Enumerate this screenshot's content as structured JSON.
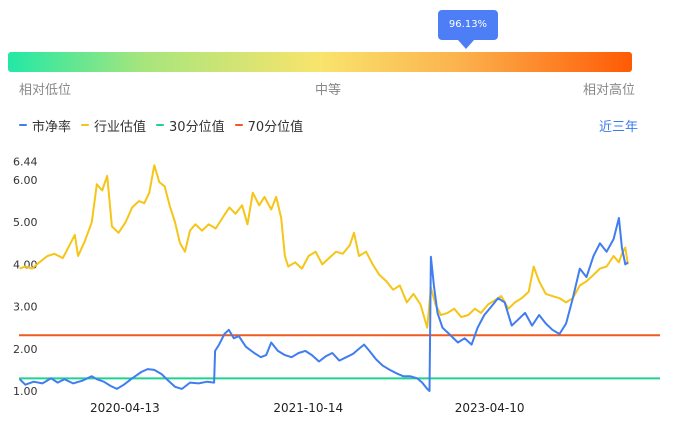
{
  "percentile_bubble": "96.13%",
  "scale": {
    "low": "相对低位",
    "mid": "中等",
    "high": "相对高位"
  },
  "legend": [
    {
      "label": "市净率",
      "color": "#3f7df0"
    },
    {
      "label": "行业估值",
      "color": "#f5c518"
    },
    {
      "label": "30分位值",
      "color": "#1fd38e"
    },
    {
      "label": "70分位值",
      "color": "#f05a1e"
    }
  ],
  "period_link": "近三年",
  "chart_data": {
    "type": "line",
    "y_ticks": [
      "1.00",
      "2.00",
      "3.00",
      "4.00",
      "5.00",
      "6.00",
      "6.44"
    ],
    "x_ticks": [
      "2020-04-13",
      "2021-10-14",
      "2023-04-10"
    ],
    "x_range": [
      "2019-06-01",
      "2024-09-01"
    ],
    "ylim": [
      1.0,
      6.44
    ],
    "percentile_30": 1.3,
    "percentile_70": 2.32,
    "series": [
      {
        "name": "市净率",
        "color": "#3f7df0",
        "points": [
          [
            "2019-06-03",
            1.28
          ],
          [
            "2019-06-20",
            1.15
          ],
          [
            "2019-07-15",
            1.22
          ],
          [
            "2019-08-10",
            1.18
          ],
          [
            "2019-09-05",
            1.3
          ],
          [
            "2019-09-25",
            1.2
          ],
          [
            "2019-10-15",
            1.28
          ],
          [
            "2019-11-10",
            1.18
          ],
          [
            "2019-12-10",
            1.25
          ],
          [
            "2020-01-05",
            1.35
          ],
          [
            "2020-01-20",
            1.28
          ],
          [
            "2020-02-10",
            1.22
          ],
          [
            "2020-03-01",
            1.12
          ],
          [
            "2020-03-20",
            1.05
          ],
          [
            "2020-04-10",
            1.15
          ],
          [
            "2020-05-05",
            1.3
          ],
          [
            "2020-06-01",
            1.45
          ],
          [
            "2020-06-20",
            1.52
          ],
          [
            "2020-07-10",
            1.5
          ],
          [
            "2020-08-01",
            1.4
          ],
          [
            "2020-08-20",
            1.25
          ],
          [
            "2020-09-10",
            1.1
          ],
          [
            "2020-10-01",
            1.05
          ],
          [
            "2020-10-25",
            1.2
          ],
          [
            "2020-11-20",
            1.18
          ],
          [
            "2020-12-15",
            1.22
          ],
          [
            "2021-01-05",
            1.2
          ],
          [
            "2021-01-08",
            1.95
          ],
          [
            "2021-01-20",
            2.1
          ],
          [
            "2021-02-05",
            2.35
          ],
          [
            "2021-02-18",
            2.45
          ],
          [
            "2021-03-05",
            2.25
          ],
          [
            "2021-03-20",
            2.3
          ],
          [
            "2021-04-10",
            2.05
          ],
          [
            "2021-05-05",
            1.9
          ],
          [
            "2021-05-25",
            1.8
          ],
          [
            "2021-06-10",
            1.85
          ],
          [
            "2021-06-25",
            2.15
          ],
          [
            "2021-07-15",
            1.95
          ],
          [
            "2021-08-05",
            1.85
          ],
          [
            "2021-08-25",
            1.8
          ],
          [
            "2021-09-15",
            1.9
          ],
          [
            "2021-10-05",
            1.95
          ],
          [
            "2021-10-25",
            1.85
          ],
          [
            "2021-11-15",
            1.7
          ],
          [
            "2021-12-05",
            1.82
          ],
          [
            "2021-12-25",
            1.9
          ],
          [
            "2022-01-15",
            1.72
          ],
          [
            "2022-02-05",
            1.8
          ],
          [
            "2022-02-25",
            1.88
          ],
          [
            "2022-03-15",
            2.0
          ],
          [
            "2022-03-30",
            2.1
          ],
          [
            "2022-04-15",
            1.95
          ],
          [
            "2022-05-05",
            1.75
          ],
          [
            "2022-05-25",
            1.6
          ],
          [
            "2022-06-15",
            1.5
          ],
          [
            "2022-07-05",
            1.42
          ],
          [
            "2022-07-25",
            1.35
          ],
          [
            "2022-08-15",
            1.35
          ],
          [
            "2022-09-05",
            1.3
          ],
          [
            "2022-09-20",
            1.2
          ],
          [
            "2022-10-05",
            1.05
          ],
          [
            "2022-10-12",
            1.0
          ],
          [
            "2022-10-16",
            4.18
          ],
          [
            "2022-10-25",
            3.5
          ],
          [
            "2022-11-05",
            2.85
          ],
          [
            "2022-11-20",
            2.5
          ],
          [
            "2022-12-10",
            2.35
          ],
          [
            "2023-01-05",
            2.15
          ],
          [
            "2023-01-25",
            2.25
          ],
          [
            "2023-02-15",
            2.1
          ],
          [
            "2023-03-05",
            2.5
          ],
          [
            "2023-03-25",
            2.8
          ],
          [
            "2023-04-15",
            3.0
          ],
          [
            "2023-05-05",
            3.2
          ],
          [
            "2023-05-25",
            3.1
          ],
          [
            "2023-06-15",
            2.55
          ],
          [
            "2023-07-05",
            2.7
          ],
          [
            "2023-07-25",
            2.85
          ],
          [
            "2023-08-15",
            2.55
          ],
          [
            "2023-09-05",
            2.8
          ],
          [
            "2023-09-25",
            2.6
          ],
          [
            "2023-10-15",
            2.45
          ],
          [
            "2023-11-05",
            2.35
          ],
          [
            "2023-11-25",
            2.6
          ],
          [
            "2023-12-15",
            3.2
          ],
          [
            "2024-01-05",
            3.9
          ],
          [
            "2024-01-25",
            3.7
          ],
          [
            "2024-02-15",
            4.2
          ],
          [
            "2024-03-05",
            4.5
          ],
          [
            "2024-03-25",
            4.3
          ],
          [
            "2024-04-15",
            4.6
          ],
          [
            "2024-05-01",
            5.1
          ],
          [
            "2024-05-10",
            4.4
          ],
          [
            "2024-05-20",
            4.0
          ],
          [
            "2024-05-28",
            4.05
          ]
        ]
      },
      {
        "name": "行业估值",
        "color": "#f5c518",
        "points": [
          [
            "2019-06-03",
            3.9
          ],
          [
            "2019-06-20",
            3.95
          ],
          [
            "2019-07-10",
            3.9
          ],
          [
            "2019-08-01",
            4.05
          ],
          [
            "2019-08-25",
            4.2
          ],
          [
            "2019-09-15",
            4.25
          ],
          [
            "2019-10-10",
            4.15
          ],
          [
            "2019-10-30",
            4.45
          ],
          [
            "2019-11-15",
            4.7
          ],
          [
            "2019-11-25",
            4.2
          ],
          [
            "2019-12-15",
            4.55
          ],
          [
            "2020-01-05",
            5.0
          ],
          [
            "2020-01-20",
            5.9
          ],
          [
            "2020-02-05",
            5.75
          ],
          [
            "2020-02-20",
            6.1
          ],
          [
            "2020-03-05",
            4.9
          ],
          [
            "2020-03-25",
            4.75
          ],
          [
            "2020-04-15",
            5.0
          ],
          [
            "2020-05-05",
            5.35
          ],
          [
            "2020-05-25",
            5.5
          ],
          [
            "2020-06-10",
            5.45
          ],
          [
            "2020-06-25",
            5.7
          ],
          [
            "2020-07-10",
            6.35
          ],
          [
            "2020-07-25",
            5.95
          ],
          [
            "2020-08-10",
            5.85
          ],
          [
            "2020-08-25",
            5.4
          ],
          [
            "2020-09-10",
            5.0
          ],
          [
            "2020-09-25",
            4.5
          ],
          [
            "2020-10-10",
            4.3
          ],
          [
            "2020-10-25",
            4.8
          ],
          [
            "2020-11-10",
            4.95
          ],
          [
            "2020-11-30",
            4.8
          ],
          [
            "2020-12-20",
            4.95
          ],
          [
            "2021-01-10",
            4.85
          ],
          [
            "2021-01-30",
            5.1
          ],
          [
            "2021-02-20",
            5.35
          ],
          [
            "2021-03-10",
            5.2
          ],
          [
            "2021-03-30",
            5.4
          ],
          [
            "2021-04-15",
            4.95
          ],
          [
            "2021-05-01",
            5.7
          ],
          [
            "2021-05-20",
            5.4
          ],
          [
            "2021-06-05",
            5.6
          ],
          [
            "2021-06-25",
            5.3
          ],
          [
            "2021-07-10",
            5.6
          ],
          [
            "2021-07-25",
            5.1
          ],
          [
            "2021-08-05",
            4.2
          ],
          [
            "2021-08-15",
            3.95
          ],
          [
            "2021-09-05",
            4.05
          ],
          [
            "2021-09-25",
            3.9
          ],
          [
            "2021-10-15",
            4.2
          ],
          [
            "2021-11-05",
            4.3
          ],
          [
            "2021-11-25",
            4.0
          ],
          [
            "2021-12-15",
            4.15
          ],
          [
            "2022-01-05",
            4.3
          ],
          [
            "2022-01-25",
            4.25
          ],
          [
            "2022-02-15",
            4.45
          ],
          [
            "2022-02-28",
            4.75
          ],
          [
            "2022-03-15",
            4.2
          ],
          [
            "2022-04-05",
            4.3
          ],
          [
            "2022-04-25",
            4.0
          ],
          [
            "2022-05-15",
            3.75
          ],
          [
            "2022-06-05",
            3.6
          ],
          [
            "2022-06-25",
            3.4
          ],
          [
            "2022-07-15",
            3.5
          ],
          [
            "2022-08-05",
            3.1
          ],
          [
            "2022-08-25",
            3.3
          ],
          [
            "2022-09-15",
            3.05
          ],
          [
            "2022-10-05",
            2.5
          ],
          [
            "2022-10-16",
            3.45
          ],
          [
            "2022-10-30",
            3.05
          ],
          [
            "2022-11-15",
            2.8
          ],
          [
            "2022-12-05",
            2.85
          ],
          [
            "2022-12-25",
            2.95
          ],
          [
            "2023-01-15",
            2.75
          ],
          [
            "2023-02-05",
            2.8
          ],
          [
            "2023-02-25",
            2.95
          ],
          [
            "2023-03-15",
            2.85
          ],
          [
            "2023-04-05",
            3.05
          ],
          [
            "2023-04-25",
            3.15
          ],
          [
            "2023-05-15",
            3.25
          ],
          [
            "2023-06-05",
            2.95
          ],
          [
            "2023-06-25",
            3.1
          ],
          [
            "2023-07-15",
            3.2
          ],
          [
            "2023-08-05",
            3.35
          ],
          [
            "2023-08-20",
            3.95
          ],
          [
            "2023-09-05",
            3.6
          ],
          [
            "2023-09-25",
            3.3
          ],
          [
            "2023-10-15",
            3.25
          ],
          [
            "2023-11-05",
            3.2
          ],
          [
            "2023-11-25",
            3.1
          ],
          [
            "2023-12-15",
            3.2
          ],
          [
            "2024-01-05",
            3.5
          ],
          [
            "2024-01-25",
            3.6
          ],
          [
            "2024-02-15",
            3.75
          ],
          [
            "2024-03-05",
            3.9
          ],
          [
            "2024-03-25",
            3.95
          ],
          [
            "2024-04-15",
            4.2
          ],
          [
            "2024-05-01",
            4.05
          ],
          [
            "2024-05-10",
            4.25
          ],
          [
            "2024-05-20",
            4.4
          ],
          [
            "2024-05-28",
            4.0
          ]
        ]
      }
    ]
  }
}
